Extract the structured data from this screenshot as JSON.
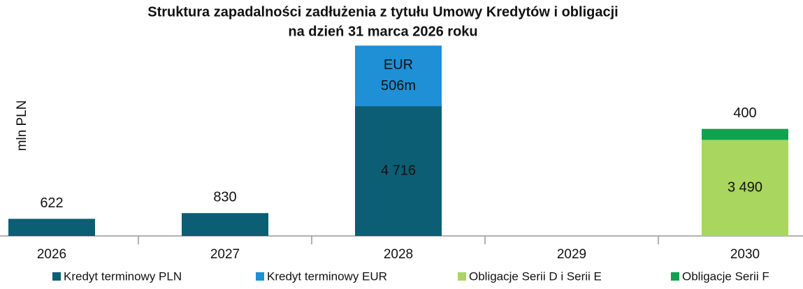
{
  "chart_data": {
    "type": "stacked_bar",
    "title": [
      "Struktura zapadalności zadłużenia z tytułu Umowy Kredytów i obligacji",
      "na dzień 31 marca 2026 roku"
    ],
    "y_label": "mln PLN",
    "categories": [
      "2026",
      "2027",
      "2028",
      "2029",
      "2030"
    ],
    "series": [
      {
        "name": "Kredyt terminowy PLN",
        "color": "#0b5e74",
        "values": [
          622,
          830,
          4716,
          null,
          null
        ],
        "value_labels": [
          "622",
          "830",
          "4 716",
          null,
          null
        ]
      },
      {
        "name": "Kredyt terminowy EUR",
        "color": "#1f8fd6",
        "values": [
          null,
          null,
          2200,
          null,
          null
        ],
        "annotation": [
          "EUR",
          "506m"
        ]
      },
      {
        "name": "Obligacje Serii D i Serii E",
        "color": "#a9d65e",
        "values": [
          null,
          null,
          null,
          null,
          3490
        ],
        "value_labels": [
          null,
          null,
          null,
          null,
          "3 490"
        ]
      },
      {
        "name": "Obligacje Serii F",
        "color": "#11a150",
        "values": [
          null,
          null,
          null,
          null,
          400
        ],
        "value_labels": [
          null,
          null,
          null,
          null,
          "400"
        ]
      }
    ],
    "ylim": [
      0,
      7000
    ]
  }
}
